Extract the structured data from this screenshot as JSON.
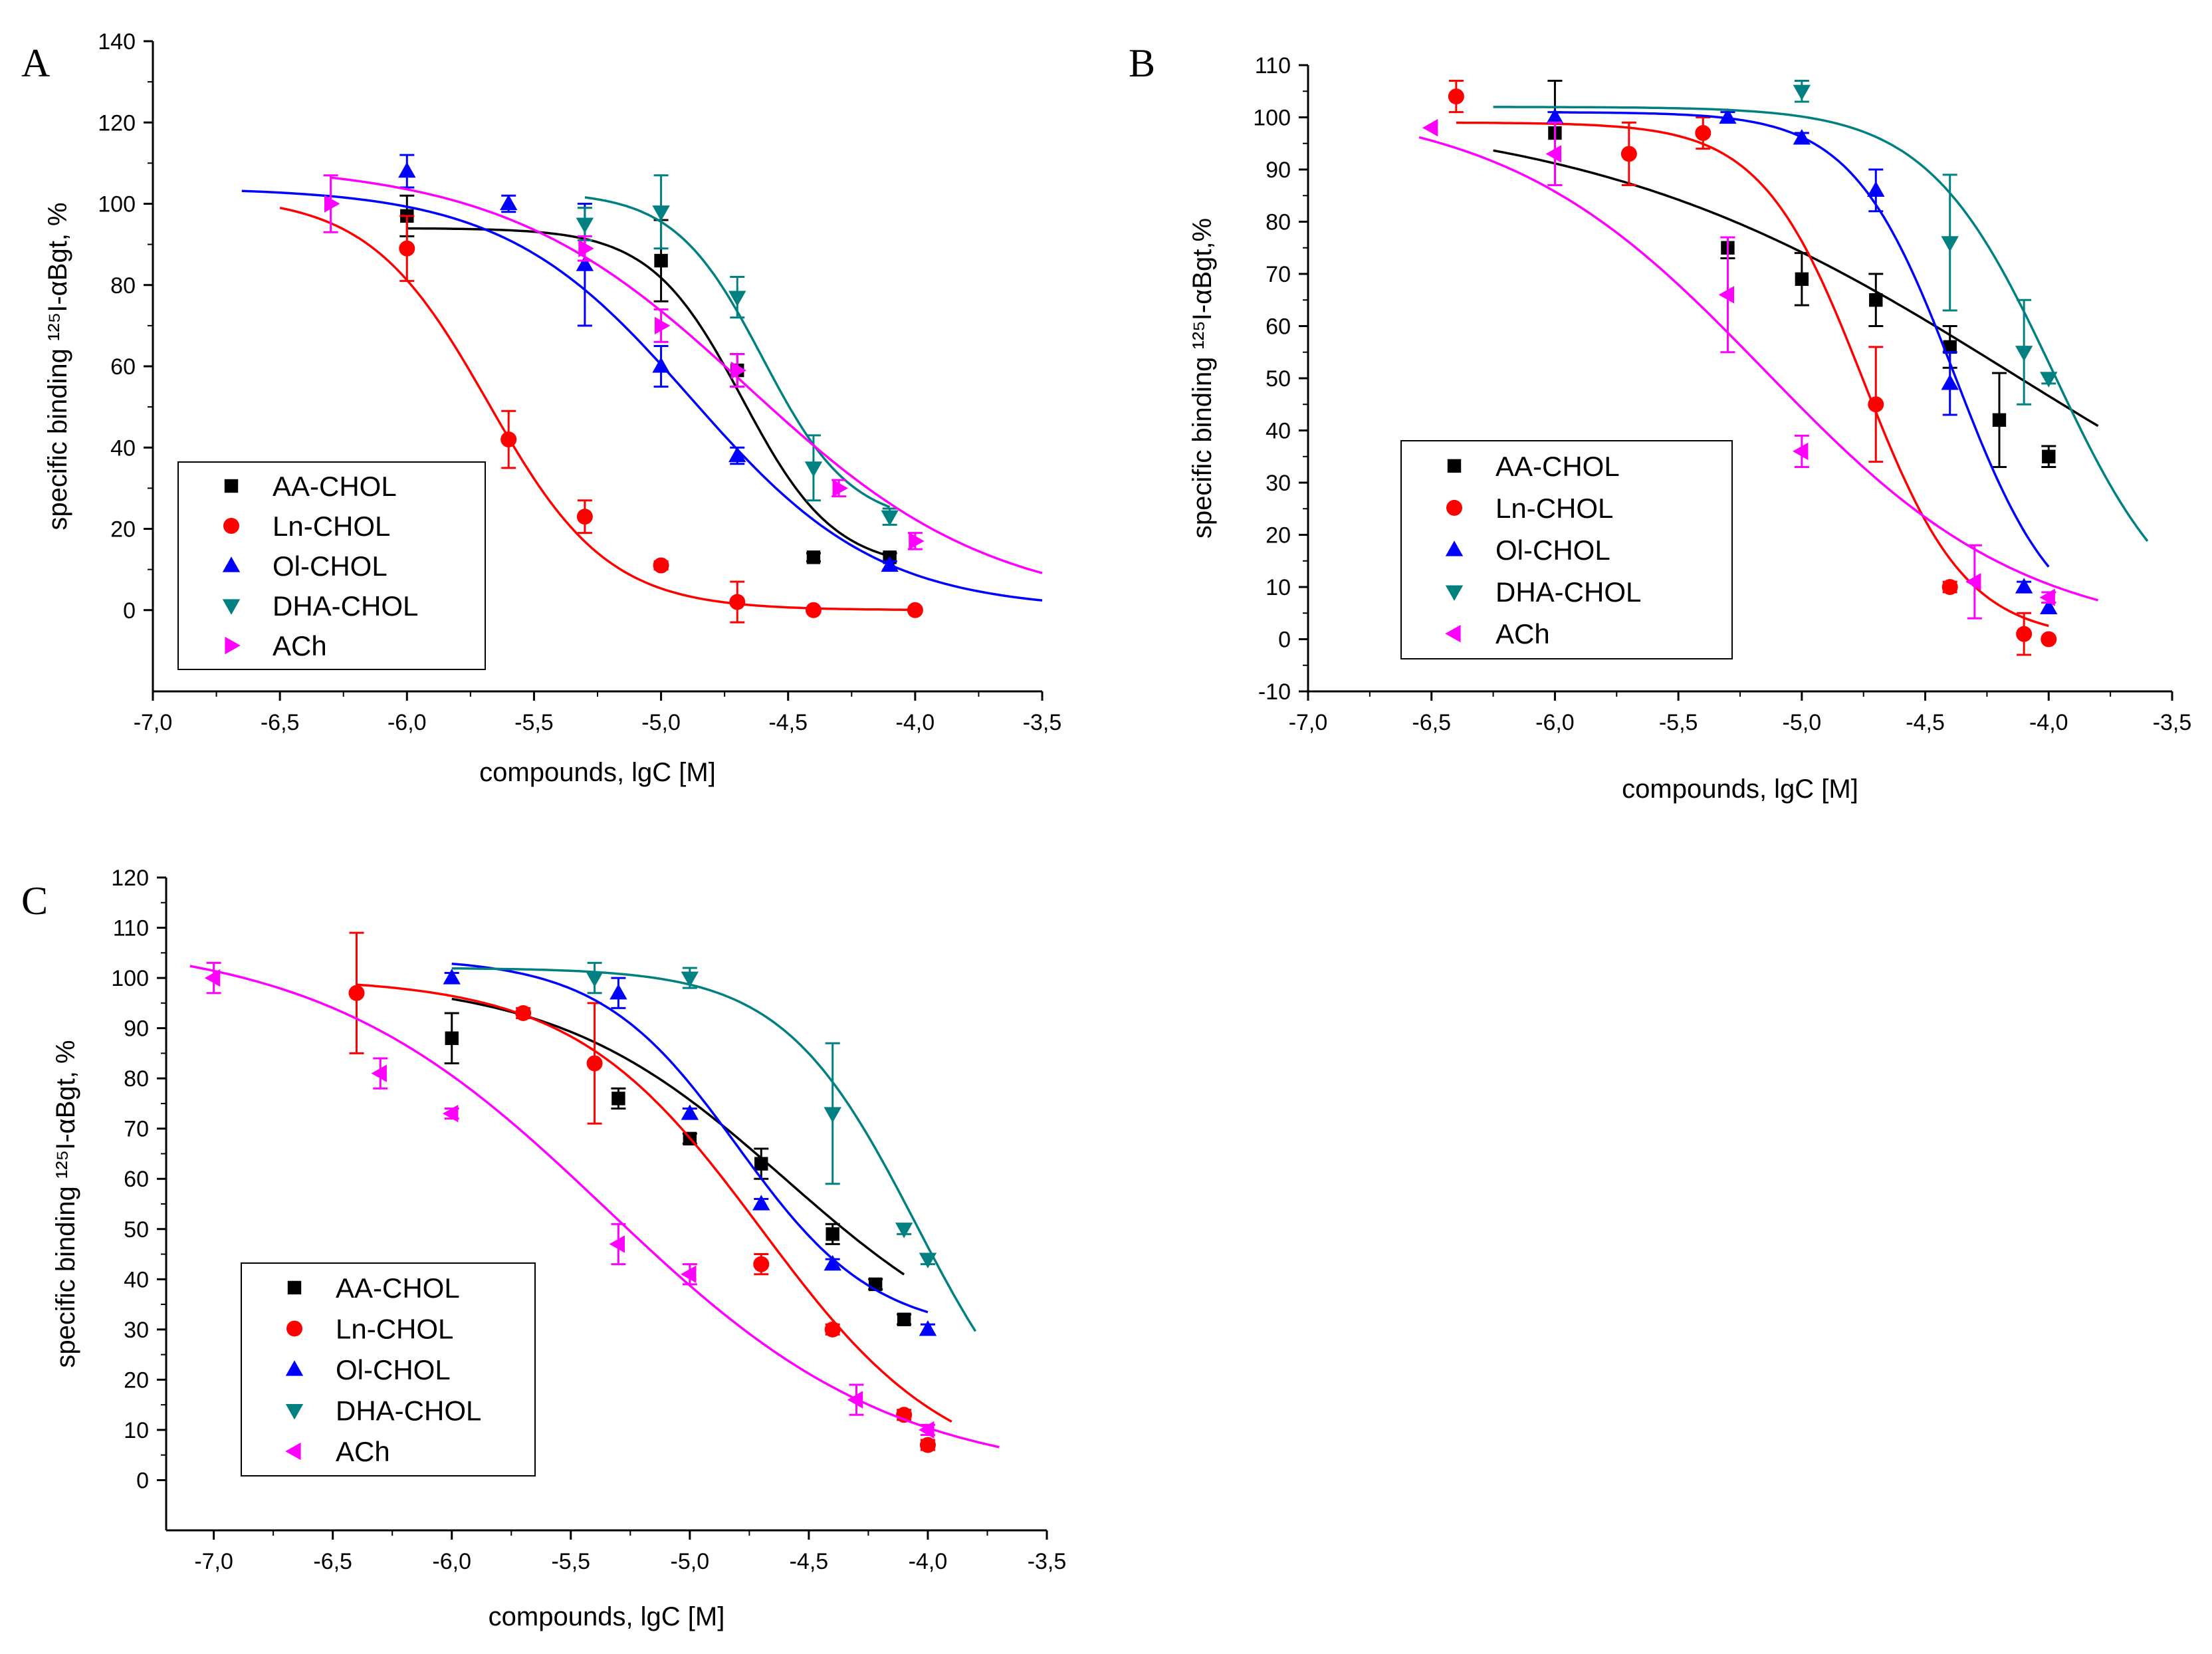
{
  "chart_data": [
    {
      "panel": "A",
      "type": "scatter",
      "xlabel": "compounds, lgC [M]",
      "ylabel": "specific binding ¹²⁵I-αBgt, %",
      "xlim": [
        -7.0,
        -3.5
      ],
      "ylim": [
        -20,
        140
      ],
      "xticks": [
        -7.0,
        -6.5,
        -6.0,
        -5.5,
        -5.0,
        -4.5,
        -4.0,
        -3.5
      ],
      "xtick_labels": [
        "-7,0",
        "-6,5",
        "-6,0",
        "-5,5",
        "-5,0",
        "-4,5",
        "-4,0",
        "-3,5"
      ],
      "yticks": [
        0,
        20,
        40,
        60,
        80,
        100,
        120,
        140
      ],
      "ytick_labels": [
        "0",
        "20",
        "40",
        "60",
        "80",
        "100",
        "120",
        "140"
      ],
      "legend_position": "bottom-left",
      "series": [
        {
          "name": "AA-CHOL",
          "color": "#000000",
          "marker": "square",
          "points": [
            [
              -6.0,
              97,
              5
            ],
            [
              -5.0,
              86,
              10
            ],
            [
              -4.7,
              59,
              4
            ],
            [
              -4.4,
              13,
              1
            ],
            [
              -4.1,
              13,
              1
            ]
          ],
          "fit": {
            "top": 94,
            "bottom": 10,
            "logEC50": -4.68,
            "hill": 2.4,
            "x0": -6.0,
            "x1": -4.1
          }
        },
        {
          "name": "Ln-CHOL",
          "color": "#ff0000",
          "marker": "circle",
          "points": [
            [
              -6.0,
              89,
              8
            ],
            [
              -5.6,
              42,
              7
            ],
            [
              -5.3,
              23,
              4
            ],
            [
              -5.0,
              11,
              1
            ],
            [
              -4.7,
              2,
              5
            ],
            [
              -4.4,
              0,
              0.5
            ],
            [
              -4.0,
              0,
              0.5
            ]
          ],
          "fit": {
            "top": 102,
            "bottom": 0,
            "logEC50": -5.68,
            "hill": 1.85,
            "x0": -6.5,
            "x1": -4.0
          }
        },
        {
          "name": "Ol-CHOL",
          "color": "#0000ff",
          "marker": "triangle-up",
          "points": [
            [
              -6.0,
              108,
              4
            ],
            [
              -5.6,
              100,
              2
            ],
            [
              -5.3,
              85,
              15
            ],
            [
              -5.0,
              60,
              5
            ],
            [
              -4.7,
              38,
              2
            ],
            [
              -4.1,
              11,
              1
            ]
          ],
          "fit": {
            "top": 104,
            "bottom": 0,
            "logEC50": -4.88,
            "hill": 1.18,
            "x0": -6.65,
            "x1": -3.5
          }
        },
        {
          "name": "DHA-CHOL",
          "color": "#008080",
          "marker": "triangle-down",
          "points": [
            [
              -5.3,
              95,
              4
            ],
            [
              -5.0,
              98,
              9
            ],
            [
              -4.7,
              77,
              5
            ],
            [
              -4.4,
              35,
              8
            ],
            [
              -4.1,
              23,
              2
            ]
          ],
          "fit": {
            "top": 103,
            "bottom": 21,
            "logEC50": -4.6,
            "hill": 2.5,
            "x0": -5.3,
            "x1": -4.1
          }
        },
        {
          "name": "ACh",
          "color": "#ff00ff",
          "marker": "triangle-right",
          "points": [
            [
              -6.3,
              100,
              7
            ],
            [
              -5.3,
              89,
              3
            ],
            [
              -5.0,
              70,
              4
            ],
            [
              -4.7,
              59,
              4
            ],
            [
              -4.3,
              30,
              2
            ],
            [
              -4.0,
              17,
              2
            ]
          ],
          "fit": {
            "top": 110,
            "bottom": 0,
            "logEC50": -4.66,
            "hill": 0.9,
            "x0": -6.3,
            "x1": -3.5
          }
        }
      ]
    },
    {
      "panel": "B",
      "type": "scatter",
      "xlabel": "compounds, lgC [M]",
      "ylabel": "specific binding ¹²⁵I-αBgt,%",
      "xlim": [
        -7.0,
        -3.5
      ],
      "ylim": [
        -10,
        110
      ],
      "xticks": [
        -7.0,
        -6.5,
        -6.0,
        -5.5,
        -5.0,
        -4.5,
        -4.0,
        -3.5
      ],
      "xtick_labels": [
        "-7,0",
        "-6,5",
        "-6,0",
        "-5,5",
        "-5,0",
        "-4,5",
        "-4,0",
        "-3,5"
      ],
      "yticks": [
        -10,
        0,
        10,
        20,
        30,
        40,
        50,
        60,
        70,
        80,
        90,
        100,
        110
      ],
      "ytick_labels": [
        "-10",
        "0",
        "10",
        "20",
        "30",
        "40",
        "50",
        "60",
        "70",
        "80",
        "90",
        "100",
        "110"
      ],
      "legend_position": "middle-left",
      "series": [
        {
          "name": "AA-CHOL",
          "color": "#000000",
          "marker": "square",
          "points": [
            [
              -6.0,
              97,
              10
            ],
            [
              -5.3,
              75,
              2
            ],
            [
              -5.0,
              69,
              5
            ],
            [
              -4.7,
              65,
              5
            ],
            [
              -4.4,
              56,
              4
            ],
            [
              -4.2,
              42,
              9
            ],
            [
              -4.0,
              35,
              2
            ]
          ],
          "fit": {
            "top": 102,
            "bottom": 0,
            "logEC50": -4.15,
            "hill": 0.5,
            "x0": -6.25,
            "x1": -3.8
          }
        },
        {
          "name": "Ln-CHOL",
          "color": "#ff0000",
          "marker": "circle",
          "points": [
            [
              -6.4,
              104,
              3
            ],
            [
              -5.7,
              93,
              6
            ],
            [
              -5.4,
              97,
              3
            ],
            [
              -4.7,
              45,
              11
            ],
            [
              -4.4,
              10,
              1
            ],
            [
              -4.1,
              1,
              4
            ],
            [
              -4.0,
              0,
              0.5
            ]
          ],
          "fit": {
            "top": 99,
            "bottom": 0,
            "logEC50": -4.75,
            "hill": 2.1,
            "x0": -6.4,
            "x1": -4.0
          }
        },
        {
          "name": "Ol-CHOL",
          "color": "#0000ff",
          "marker": "triangle-up",
          "points": [
            [
              -6.0,
              100,
              1
            ],
            [
              -5.3,
              100,
              1
            ],
            [
              -5.0,
              96,
              1
            ],
            [
              -4.7,
              86,
              4
            ],
            [
              -4.4,
              49,
              6
            ],
            [
              -4.1,
              10,
              1
            ],
            [
              -4.0,
              6,
              1
            ]
          ],
          "fit": {
            "top": 101,
            "bottom": 0,
            "logEC50": -4.38,
            "hill": 2.1,
            "x0": -6.0,
            "x1": -4.0
          }
        },
        {
          "name": "DHA-CHOL",
          "color": "#008080",
          "marker": "triangle-down",
          "points": [
            [
              -5.0,
              105,
              2
            ],
            [
              -4.4,
              76,
              13
            ],
            [
              -4.1,
              55,
              10
            ],
            [
              -4.0,
              50,
              1
            ]
          ],
          "fit": {
            "top": 102,
            "bottom": 0,
            "logEC50": -3.98,
            "hill": 1.7,
            "x0": -6.25,
            "x1": -3.6
          }
        },
        {
          "name": "ACh",
          "color": "#ff00ff",
          "marker": "triangle-left",
          "points": [
            [
              -6.5,
              98,
              0.5
            ],
            [
              -6.0,
              93,
              6
            ],
            [
              -5.3,
              66,
              11
            ],
            [
              -5.0,
              36,
              3
            ],
            [
              -4.3,
              11,
              7
            ],
            [
              -4.0,
              8,
              1
            ]
          ],
          "fit": {
            "top": 103,
            "bottom": 0,
            "logEC50": -5.15,
            "hill": 0.82,
            "x0": -6.55,
            "x1": -3.8
          }
        }
      ]
    },
    {
      "panel": "C",
      "type": "scatter",
      "xlabel": "compounds, lgC [M]",
      "ylabel": "specific binding ¹²⁵I-αBgt, %",
      "xlim": [
        -7.2,
        -3.5
      ],
      "ylim": [
        -10,
        120
      ],
      "xticks": [
        -7.0,
        -6.5,
        -6.0,
        -5.5,
        -5.0,
        -4.5,
        -4.0,
        -3.5
      ],
      "xtick_labels": [
        "-7,0",
        "-6,5",
        "-6,0",
        "-5,5",
        "-5,0",
        "-4,5",
        "-4,0",
        "-3,5"
      ],
      "yticks": [
        0,
        10,
        20,
        30,
        40,
        50,
        60,
        70,
        80,
        90,
        100,
        110,
        120
      ],
      "ytick_labels": [
        "0",
        "10",
        "20",
        "30",
        "40",
        "50",
        "60",
        "70",
        "80",
        "90",
        "100",
        "110",
        "120"
      ],
      "legend_position": "bottom-left",
      "series": [
        {
          "name": "AA-CHOL",
          "color": "#000000",
          "marker": "square",
          "points": [
            [
              -6.0,
              88,
              5
            ],
            [
              -5.3,
              76,
              2
            ],
            [
              -5.0,
              68,
              1
            ],
            [
              -4.7,
              63,
              3
            ],
            [
              -4.4,
              49,
              2
            ],
            [
              -4.22,
              39,
              1
            ],
            [
              -4.1,
              32,
              1
            ]
          ],
          "fit": {
            "top": 100,
            "bottom": 20,
            "logEC50": -4.6,
            "hill": 0.9,
            "x0": -6.0,
            "x1": -4.1
          }
        },
        {
          "name": "Ln-CHOL",
          "color": "#ff0000",
          "marker": "circle",
          "points": [
            [
              -6.4,
              97,
              12
            ],
            [
              -5.7,
              93,
              1
            ],
            [
              -5.4,
              83,
              12
            ],
            [
              -4.7,
              43,
              2
            ],
            [
              -4.4,
              30,
              1
            ],
            [
              -4.1,
              13,
              1
            ],
            [
              -4.0,
              7,
              1
            ]
          ],
          "fit": {
            "top": 100,
            "bottom": 0,
            "logEC50": -4.7,
            "hill": 1.1,
            "x0": -6.4,
            "x1": -3.9
          }
        },
        {
          "name": "Ol-CHOL",
          "color": "#0000ff",
          "marker": "triangle-up",
          "points": [
            [
              -6.0,
              100,
              1
            ],
            [
              -5.3,
              97,
              3
            ],
            [
              -5.0,
              73,
              1
            ],
            [
              -4.7,
              55,
              1
            ],
            [
              -4.4,
              43,
              1
            ],
            [
              -4.0,
              30,
              1
            ]
          ],
          "fit": {
            "top": 104,
            "bottom": 29,
            "logEC50": -4.8,
            "hill": 1.5,
            "x0": -6.0,
            "x1": -4.0
          }
        },
        {
          "name": "DHA-CHOL",
          "color": "#008080",
          "marker": "triangle-down",
          "points": [
            [
              -5.4,
              100,
              3
            ],
            [
              -5.0,
              100,
              2
            ],
            [
              -4.4,
              73,
              14
            ],
            [
              -4.1,
              50,
              1
            ],
            [
              -4.0,
              44,
              1
            ]
          ],
          "fit": {
            "top": 102,
            "bottom": 0,
            "logEC50": -4.05,
            "hill": 1.55,
            "x0": -6.0,
            "x1": -3.8
          }
        },
        {
          "name": "ACh",
          "color": "#ff00ff",
          "marker": "triangle-left",
          "points": [
            [
              -7.0,
              100,
              3
            ],
            [
              -6.3,
              81,
              3
            ],
            [
              -6.0,
              73,
              1
            ],
            [
              -5.3,
              47,
              4
            ],
            [
              -5.0,
              41,
              2
            ],
            [
              -4.3,
              16,
              3
            ],
            [
              -4.0,
              10,
              1
            ]
          ],
          "fit": {
            "top": 108,
            "bottom": 0,
            "logEC50": -5.35,
            "hill": 0.72,
            "x0": -7.1,
            "x1": -3.7
          }
        }
      ]
    }
  ]
}
